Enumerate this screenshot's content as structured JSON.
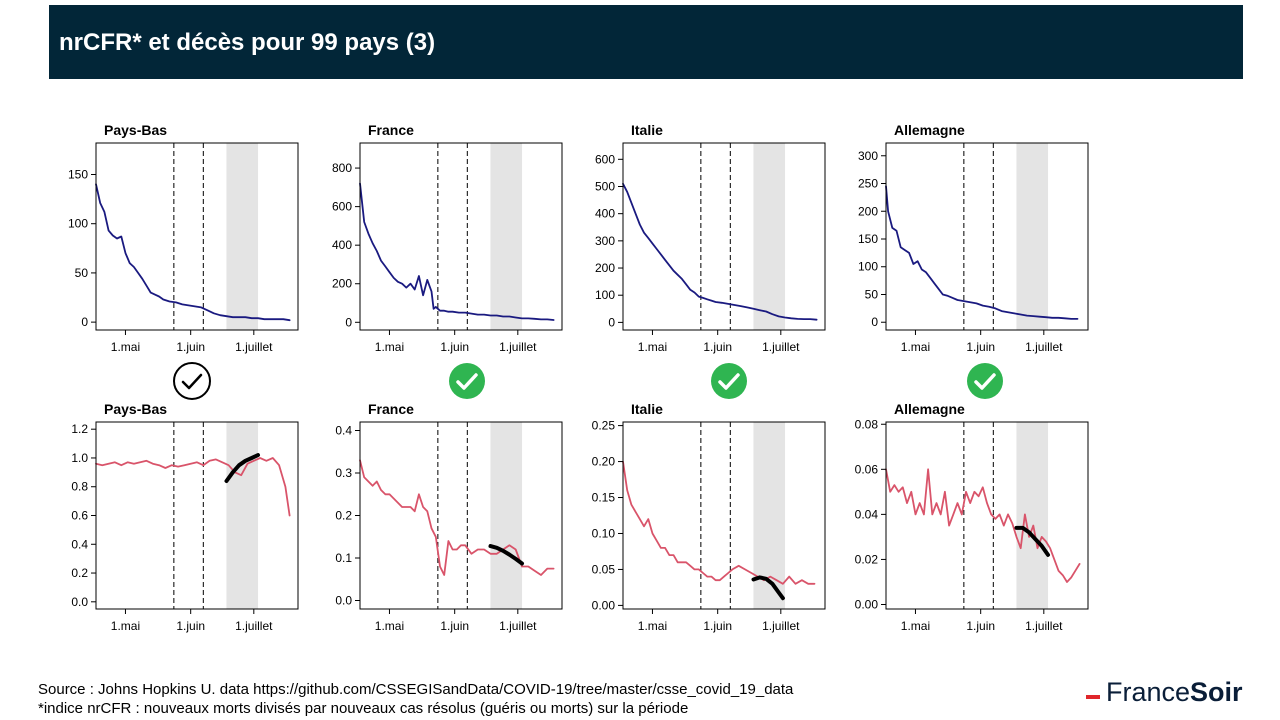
{
  "header": {
    "title": "nrCFR* et décès pour 99 pays (3)"
  },
  "footer": {
    "source": "Source : Johns Hopkins U. data https://github.com/CSSEGISandData/COVID-19/tree/master/csse_covid_19_data",
    "note": "*indice nrCFR : nouveaux morts divisés par nouveaux cas résolus (guéris ou morts) sur la période"
  },
  "logo": {
    "part1": "France",
    "part2": "Soir"
  },
  "colors": {
    "header_bg": "#022638",
    "deaths_line": "#1a1a80",
    "cfr_line": "#d9546a",
    "trend_line": "#000000",
    "check_green": "#2fb551",
    "shade": "#e4e4e4"
  },
  "status_icons": [
    {
      "country": "Pays-Bas",
      "icon": "check-circle-outline-icon"
    },
    {
      "country": "France",
      "icon": "check-circle-green-icon"
    },
    {
      "country": "Italie",
      "icon": "check-circle-green-icon"
    },
    {
      "country": "Allemagne",
      "icon": "check-circle-green-icon"
    }
  ],
  "chart_data": [
    {
      "type": "line",
      "title": "Pays-Bas",
      "metric": "deaths",
      "x_ticks": [
        "1.mai",
        "1.juin",
        "1.juillet"
      ],
      "x_tick_values": [
        14,
        45,
        75
      ],
      "x_range": [
        0,
        96
      ],
      "ylim": [
        -8,
        182
      ],
      "y_ticks": [
        0,
        50,
        100,
        150
      ],
      "vlines": [
        37,
        51
      ],
      "shaded": [
        62,
        77
      ],
      "series": [
        {
          "x": [
            0,
            2,
            4,
            6,
            8,
            10,
            12,
            14,
            16,
            18,
            20,
            22,
            24,
            26,
            28,
            30,
            32,
            35,
            38,
            41,
            44,
            47,
            50,
            53,
            56,
            59,
            62,
            65,
            68,
            71,
            74,
            77,
            80,
            83,
            86,
            89,
            92
          ],
          "values": [
            140,
            121,
            112,
            93,
            88,
            85,
            87,
            70,
            60,
            56,
            50,
            44,
            37,
            30,
            28,
            26,
            23,
            21,
            20,
            18,
            17,
            16,
            15,
            12,
            9,
            7,
            6,
            5,
            5,
            5,
            4,
            4,
            3,
            3,
            3,
            3,
            2
          ]
        }
      ]
    },
    {
      "type": "line",
      "title": "France",
      "metric": "deaths",
      "x_ticks": [
        "1.mai",
        "1.juin",
        "1.juillet"
      ],
      "x_tick_values": [
        14,
        45,
        75
      ],
      "x_range": [
        0,
        96
      ],
      "ylim": [
        -40,
        930
      ],
      "y_ticks": [
        0,
        200,
        400,
        600,
        800
      ],
      "vlines": [
        37,
        51
      ],
      "shaded": [
        62,
        77
      ],
      "series": [
        {
          "x": [
            0,
            2,
            4,
            6,
            8,
            10,
            12,
            14,
            16,
            18,
            20,
            22,
            24,
            26,
            28,
            30,
            32,
            34,
            35,
            36,
            38,
            40,
            42,
            44,
            47,
            50,
            53,
            56,
            59,
            62,
            65,
            68,
            71,
            74,
            77,
            80,
            83,
            86,
            89,
            92
          ],
          "values": [
            720,
            520,
            460,
            410,
            370,
            320,
            290,
            260,
            230,
            210,
            200,
            180,
            200,
            170,
            240,
            140,
            220,
            160,
            70,
            80,
            60,
            60,
            55,
            55,
            50,
            50,
            45,
            40,
            40,
            35,
            35,
            30,
            30,
            25,
            20,
            20,
            18,
            15,
            15,
            12
          ]
        }
      ]
    },
    {
      "type": "line",
      "title": "Italie",
      "metric": "deaths",
      "x_ticks": [
        "1.mai",
        "1.juin",
        "1.juillet"
      ],
      "x_tick_values": [
        14,
        45,
        75
      ],
      "x_range": [
        0,
        96
      ],
      "ylim": [
        -28,
        660
      ],
      "y_ticks": [
        0,
        100,
        200,
        300,
        400,
        500,
        600
      ],
      "vlines": [
        37,
        51
      ],
      "shaded": [
        62,
        77
      ],
      "series": [
        {
          "x": [
            0,
            2,
            4,
            6,
            8,
            10,
            12,
            14,
            16,
            18,
            20,
            22,
            24,
            26,
            28,
            30,
            32,
            34,
            36,
            38,
            40,
            42,
            44,
            47,
            50,
            53,
            56,
            59,
            62,
            65,
            68,
            71,
            74,
            77,
            80,
            83,
            86,
            89,
            92
          ],
          "values": [
            510,
            480,
            440,
            400,
            360,
            330,
            310,
            290,
            270,
            250,
            230,
            210,
            190,
            175,
            160,
            140,
            120,
            110,
            95,
            90,
            85,
            80,
            75,
            72,
            68,
            64,
            60,
            55,
            50,
            45,
            40,
            30,
            22,
            18,
            15,
            13,
            12,
            12,
            10
          ]
        }
      ]
    },
    {
      "type": "line",
      "title": "Allemagne",
      "metric": "deaths",
      "x_ticks": [
        "1.mai",
        "1.juin",
        "1.juillet"
      ],
      "x_tick_values": [
        14,
        45,
        75
      ],
      "x_range": [
        0,
        96
      ],
      "ylim": [
        -14,
        323
      ],
      "y_ticks": [
        0,
        50,
        100,
        150,
        200,
        250,
        300
      ],
      "vlines": [
        37,
        51
      ],
      "shaded": [
        62,
        77
      ],
      "series": [
        {
          "x": [
            0,
            1,
            3,
            5,
            7,
            9,
            11,
            13,
            15,
            17,
            19,
            21,
            23,
            25,
            27,
            29,
            31,
            34,
            37,
            40,
            43,
            46,
            49,
            52,
            55,
            58,
            61,
            64,
            67,
            70,
            73,
            76,
            79,
            82,
            85,
            88,
            91
          ],
          "values": [
            245,
            200,
            170,
            165,
            135,
            130,
            125,
            105,
            110,
            95,
            90,
            80,
            70,
            60,
            50,
            48,
            45,
            40,
            38,
            36,
            34,
            30,
            28,
            25,
            20,
            18,
            16,
            14,
            12,
            11,
            10,
            9,
            8,
            8,
            7,
            6,
            6
          ]
        }
      ]
    },
    {
      "type": "line",
      "title": "Pays-Bas",
      "metric": "nrCFR",
      "x_ticks": [
        "1.mai",
        "1.juin",
        "1.juillet"
      ],
      "x_tick_values": [
        14,
        45,
        75
      ],
      "x_range": [
        0,
        96
      ],
      "ylim": [
        -0.05,
        1.25
      ],
      "y_ticks": [
        0.0,
        0.2,
        0.4,
        0.6,
        0.8,
        1.0,
        1.2
      ],
      "y_tick_labels": [
        "0.0",
        "0.2",
        "0.4",
        "0.6",
        "0.8",
        "1.0",
        "1.2"
      ],
      "vlines": [
        37,
        51
      ],
      "shaded": [
        62,
        77
      ],
      "series": [
        {
          "x": [
            0,
            3,
            6,
            9,
            12,
            15,
            18,
            21,
            24,
            27,
            30,
            33,
            36,
            39,
            42,
            45,
            48,
            51,
            54,
            57,
            60,
            63,
            66,
            69,
            72,
            75,
            78,
            81,
            84,
            87,
            90,
            92
          ],
          "values": [
            0.96,
            0.95,
            0.96,
            0.97,
            0.95,
            0.97,
            0.96,
            0.97,
            0.98,
            0.96,
            0.95,
            0.93,
            0.95,
            0.94,
            0.95,
            0.96,
            0.97,
            0.95,
            0.98,
            0.99,
            0.97,
            0.95,
            0.9,
            0.88,
            0.96,
            0.98,
            1.0,
            0.98,
            1.0,
            0.95,
            0.8,
            0.6
          ]
        },
        {
          "name": "trend",
          "x": [
            62,
            65,
            68,
            71,
            74,
            77
          ],
          "values": [
            0.84,
            0.9,
            0.95,
            0.98,
            1.0,
            1.02
          ]
        }
      ]
    },
    {
      "type": "line",
      "title": "France",
      "metric": "nrCFR",
      "x_ticks": [
        "1.mai",
        "1.juin",
        "1.juillet"
      ],
      "x_tick_values": [
        14,
        45,
        75
      ],
      "x_range": [
        0,
        96
      ],
      "ylim": [
        -0.02,
        0.42
      ],
      "y_ticks": [
        0.0,
        0.1,
        0.2,
        0.3,
        0.4
      ],
      "y_tick_labels": [
        "0.0",
        "0.1",
        "0.2",
        "0.3",
        "0.4"
      ],
      "vlines": [
        37,
        51
      ],
      "shaded": [
        62,
        77
      ],
      "series": [
        {
          "x": [
            0,
            2,
            4,
            6,
            8,
            10,
            12,
            14,
            16,
            18,
            20,
            22,
            24,
            26,
            28,
            30,
            32,
            34,
            36,
            38,
            40,
            42,
            44,
            46,
            48,
            50,
            53,
            56,
            59,
            62,
            65,
            68,
            71,
            74,
            77,
            80,
            83,
            86,
            89,
            92
          ],
          "values": [
            0.33,
            0.29,
            0.28,
            0.27,
            0.28,
            0.26,
            0.25,
            0.25,
            0.24,
            0.23,
            0.22,
            0.22,
            0.22,
            0.21,
            0.25,
            0.22,
            0.21,
            0.17,
            0.15,
            0.08,
            0.06,
            0.14,
            0.12,
            0.12,
            0.13,
            0.13,
            0.11,
            0.12,
            0.12,
            0.11,
            0.11,
            0.12,
            0.13,
            0.12,
            0.08,
            0.08,
            0.07,
            0.06,
            0.075,
            0.075
          ]
        },
        {
          "name": "trend",
          "x": [
            62,
            65,
            68,
            71,
            74,
            77
          ],
          "values": [
            0.128,
            0.124,
            0.117,
            0.108,
            0.098,
            0.087
          ]
        }
      ]
    },
    {
      "type": "line",
      "title": "Italie",
      "metric": "nrCFR",
      "x_ticks": [
        "1.mai",
        "1.juin",
        "1.juillet"
      ],
      "x_tick_values": [
        14,
        45,
        75
      ],
      "x_range": [
        0,
        96
      ],
      "ylim": [
        -0.005,
        0.255
      ],
      "y_ticks": [
        0.0,
        0.05,
        0.1,
        0.15,
        0.2,
        0.25
      ],
      "y_tick_labels": [
        "0.00",
        "0.05",
        "0.10",
        "0.15",
        "0.20",
        "0.25"
      ],
      "vlines": [
        37,
        51
      ],
      "shaded": [
        62,
        77
      ],
      "series": [
        {
          "x": [
            0,
            2,
            4,
            6,
            8,
            10,
            12,
            14,
            16,
            18,
            20,
            22,
            24,
            26,
            28,
            30,
            32,
            34,
            36,
            38,
            40,
            42,
            44,
            46,
            48,
            50,
            52,
            55,
            58,
            61,
            64,
            67,
            70,
            73,
            76,
            79,
            82,
            85,
            88,
            91
          ],
          "values": [
            0.2,
            0.16,
            0.14,
            0.13,
            0.12,
            0.11,
            0.12,
            0.1,
            0.09,
            0.08,
            0.08,
            0.07,
            0.07,
            0.06,
            0.06,
            0.06,
            0.055,
            0.05,
            0.05,
            0.045,
            0.04,
            0.04,
            0.035,
            0.035,
            0.04,
            0.045,
            0.05,
            0.055,
            0.05,
            0.045,
            0.04,
            0.035,
            0.04,
            0.035,
            0.03,
            0.04,
            0.03,
            0.035,
            0.03,
            0.03
          ]
        },
        {
          "name": "trend",
          "x": [
            62,
            65,
            68,
            71,
            74,
            76
          ],
          "values": [
            0.036,
            0.039,
            0.037,
            0.03,
            0.018,
            0.01
          ]
        }
      ]
    },
    {
      "type": "line",
      "title": "Allemagne",
      "metric": "nrCFR",
      "x_ticks": [
        "1.mai",
        "1.juin",
        "1.juillet"
      ],
      "x_tick_values": [
        14,
        45,
        75
      ],
      "x_range": [
        0,
        96
      ],
      "ylim": [
        -0.002,
        0.081
      ],
      "y_ticks": [
        0.0,
        0.02,
        0.04,
        0.06,
        0.08
      ],
      "y_tick_labels": [
        "0.00",
        "0.02",
        "0.04",
        "0.06",
        "0.08"
      ],
      "vlines": [
        37,
        51
      ],
      "shaded": [
        62,
        77
      ],
      "series": [
        {
          "x": [
            0,
            2,
            4,
            6,
            8,
            10,
            12,
            14,
            16,
            18,
            20,
            22,
            24,
            26,
            28,
            30,
            32,
            34,
            36,
            38,
            40,
            42,
            44,
            46,
            48,
            50,
            52,
            54,
            56,
            58,
            60,
            62,
            64,
            66,
            68,
            70,
            72,
            74,
            76,
            78,
            80,
            82,
            84,
            86,
            88,
            90,
            92
          ],
          "values": [
            0.06,
            0.05,
            0.053,
            0.05,
            0.052,
            0.045,
            0.05,
            0.04,
            0.045,
            0.04,
            0.06,
            0.04,
            0.045,
            0.04,
            0.05,
            0.035,
            0.04,
            0.045,
            0.04,
            0.05,
            0.045,
            0.05,
            0.048,
            0.052,
            0.045,
            0.04,
            0.038,
            0.04,
            0.035,
            0.04,
            0.036,
            0.03,
            0.025,
            0.04,
            0.03,
            0.035,
            0.025,
            0.03,
            0.028,
            0.025,
            0.02,
            0.015,
            0.013,
            0.01,
            0.012,
            0.015,
            0.018
          ]
        },
        {
          "name": "trend",
          "x": [
            62,
            65,
            68,
            71,
            74,
            77
          ],
          "values": [
            0.034,
            0.034,
            0.032,
            0.029,
            0.026,
            0.022
          ]
        }
      ]
    }
  ]
}
